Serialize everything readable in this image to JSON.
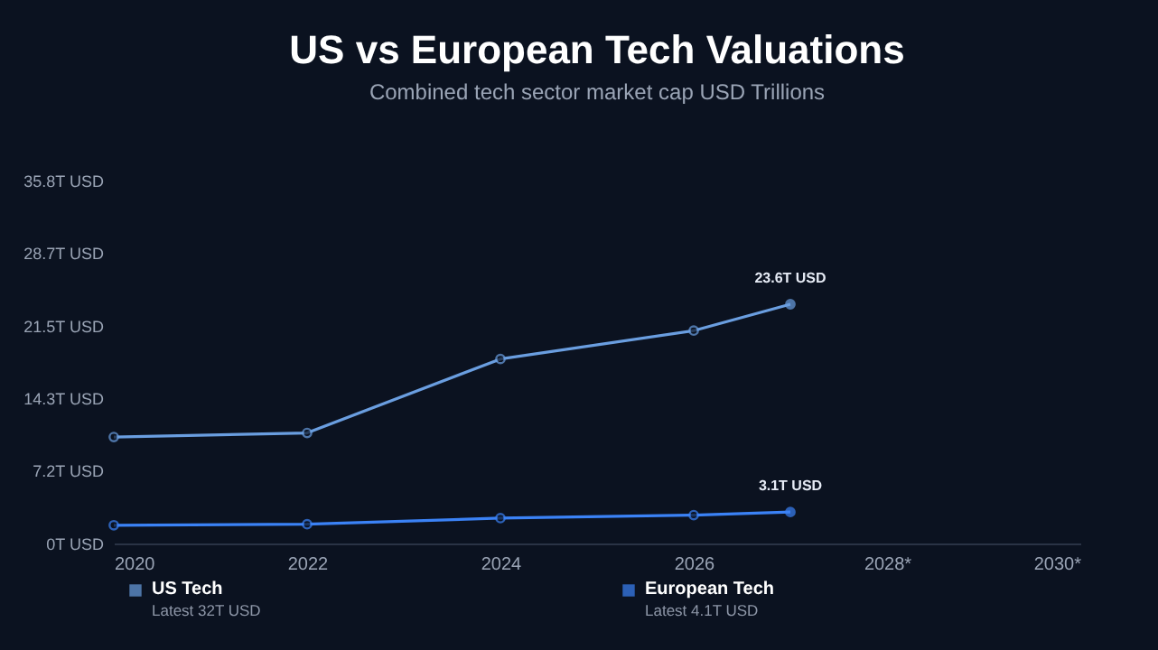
{
  "chart_data": {
    "type": "line",
    "title": "US vs European Tech Valuations",
    "subtitle": "Combined tech sector market cap USD Trillions",
    "x": [
      2020,
      2022,
      2024,
      2026,
      2027
    ],
    "series": [
      {
        "name": "US Tech",
        "color": "#6a9ee0",
        "values": [
          10.5,
          10.9,
          18.2,
          21.0,
          23.6
        ],
        "value_labels": [
          null,
          null,
          null,
          null,
          "23.6T USD"
        ]
      },
      {
        "name": "European Tech",
        "color": "#3b82f6",
        "values": [
          1.8,
          1.9,
          2.5,
          2.8,
          3.1
        ],
        "value_labels": [
          null,
          null,
          null,
          null,
          "3.1T USD"
        ]
      }
    ],
    "annotations": [
      "Latest 32T USD",
      "Latest 4.1T USD"
    ],
    "xlim": [
      2020,
      2030
    ],
    "xticks": [
      2020,
      2022,
      2024,
      2026,
      {
        "value": 2028,
        "label": "2028*"
      },
      {
        "value": 2030,
        "label": "2030*"
      }
    ],
    "ylim": [
      0,
      35.8
    ],
    "yticks": [
      {
        "value": 0,
        "label": "0T USD"
      },
      {
        "value": 7.2,
        "label": "7.2T USD"
      },
      {
        "value": 14.3,
        "label": "14.3T USD"
      },
      {
        "value": 21.5,
        "label": "21.5T USD"
      },
      {
        "value": 28.7,
        "label": "28.7T USD"
      },
      {
        "value": 35.8,
        "label": "35.8T USD"
      }
    ],
    "grid": false,
    "legend": "bottom",
    "marker": "circle",
    "line_style": "solid"
  }
}
